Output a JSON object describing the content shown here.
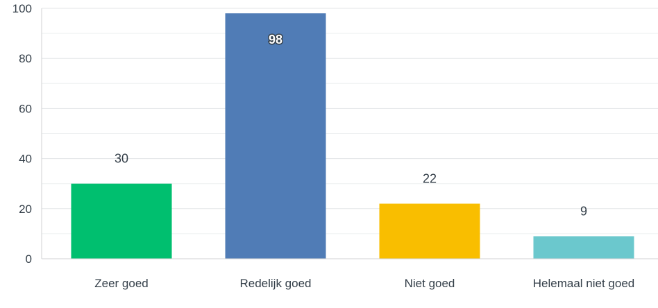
{
  "chart_data": {
    "type": "bar",
    "categories": [
      "Zeer goed",
      "Redelijk goed",
      "Niet goed",
      "Helemaal niet goed"
    ],
    "values": [
      30,
      98,
      22,
      9
    ],
    "colors": [
      "#00bf6f",
      "#507cb6",
      "#f9be00",
      "#6bc8cd"
    ],
    "y_ticks": [
      "0",
      "20",
      "40",
      "60",
      "80",
      "100"
    ],
    "ylim": [
      0,
      100
    ],
    "grid": true,
    "grid_minor": true,
    "title": "",
    "xlabel": "",
    "ylabel": ""
  }
}
